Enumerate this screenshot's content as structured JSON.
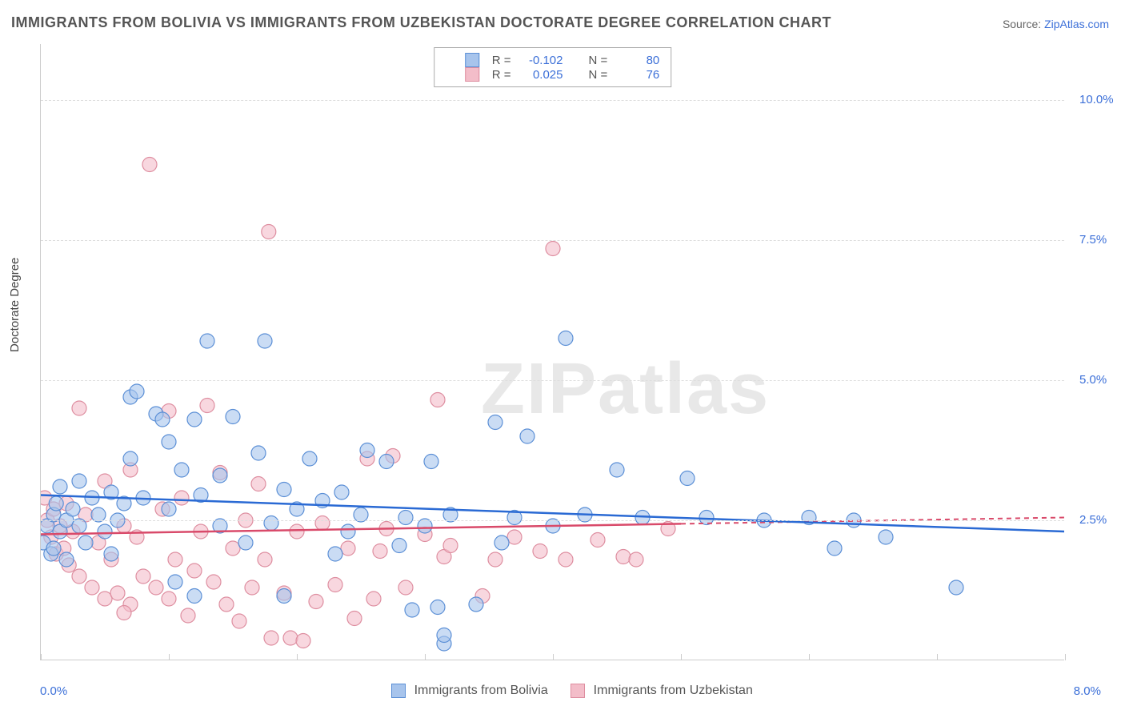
{
  "title": "IMMIGRANTS FROM BOLIVIA VS IMMIGRANTS FROM UZBEKISTAN DOCTORATE DEGREE CORRELATION CHART",
  "source_prefix": "Source: ",
  "source_name": "ZipAtlas.com",
  "watermark": "ZIPatlas",
  "y_axis_label": "Doctorate Degree",
  "chart": {
    "type": "scatter-with-trendlines",
    "background_color": "#ffffff",
    "grid_color": "#dddddd",
    "axis_color": "#cccccc",
    "tick_font_color": "#3b6fd8",
    "xlim": [
      0.0,
      8.0
    ],
    "ylim": [
      0.0,
      11.0
    ],
    "y_ticks": [
      2.5,
      5.0,
      7.5,
      10.0
    ],
    "y_tick_labels": [
      "2.5%",
      "5.0%",
      "7.5%",
      "10.0%"
    ],
    "x_ticks_count": 9,
    "x_min_label": "0.0%",
    "x_max_label": "8.0%",
    "marker_radius": 9,
    "marker_opacity": 0.6,
    "series": [
      {
        "name": "Immigrants from Bolivia",
        "legend_label": "Immigrants from Bolivia",
        "fill_color": "#a7c4ec",
        "stroke_color": "#5b8fd6",
        "trend_color": "#2a6ad4",
        "trend_dash_after_x": 8.0,
        "R": "-0.102",
        "N": "80",
        "trend": {
          "x0": 0.0,
          "y0": 2.95,
          "x1": 8.0,
          "y1": 2.3
        },
        "points": [
          [
            0.02,
            2.1
          ],
          [
            0.05,
            2.4
          ],
          [
            0.08,
            1.9
          ],
          [
            0.1,
            2.6
          ],
          [
            0.1,
            2.0
          ],
          [
            0.12,
            2.8
          ],
          [
            0.15,
            3.1
          ],
          [
            0.15,
            2.3
          ],
          [
            0.2,
            2.5
          ],
          [
            0.2,
            1.8
          ],
          [
            0.25,
            2.7
          ],
          [
            0.3,
            2.4
          ],
          [
            0.3,
            3.2
          ],
          [
            0.35,
            2.1
          ],
          [
            0.4,
            2.9
          ],
          [
            0.45,
            2.6
          ],
          [
            0.5,
            2.3
          ],
          [
            0.55,
            3.0
          ],
          [
            0.6,
            2.5
          ],
          [
            0.65,
            2.8
          ],
          [
            0.7,
            4.7
          ],
          [
            0.75,
            4.8
          ],
          [
            0.7,
            3.6
          ],
          [
            0.8,
            2.9
          ],
          [
            0.9,
            4.4
          ],
          [
            0.95,
            4.3
          ],
          [
            1.0,
            3.9
          ],
          [
            1.0,
            2.7
          ],
          [
            1.1,
            3.4
          ],
          [
            1.2,
            4.3
          ],
          [
            1.2,
            1.15
          ],
          [
            1.25,
            2.95
          ],
          [
            1.3,
            5.7
          ],
          [
            1.4,
            2.4
          ],
          [
            1.4,
            3.3
          ],
          [
            1.5,
            4.35
          ],
          [
            1.6,
            2.1
          ],
          [
            1.7,
            3.7
          ],
          [
            1.75,
            5.7
          ],
          [
            1.8,
            2.45
          ],
          [
            1.9,
            3.05
          ],
          [
            1.9,
            1.15
          ],
          [
            2.0,
            2.7
          ],
          [
            2.1,
            3.6
          ],
          [
            2.2,
            2.85
          ],
          [
            2.3,
            1.9
          ],
          [
            2.35,
            3.0
          ],
          [
            2.4,
            2.3
          ],
          [
            2.5,
            2.6
          ],
          [
            2.55,
            3.75
          ],
          [
            2.7,
            3.55
          ],
          [
            2.8,
            2.05
          ],
          [
            2.85,
            2.55
          ],
          [
            2.9,
            0.9
          ],
          [
            3.0,
            2.4
          ],
          [
            3.05,
            3.55
          ],
          [
            3.1,
            0.95
          ],
          [
            3.15,
            0.3
          ],
          [
            3.15,
            0.45
          ],
          [
            3.2,
            2.6
          ],
          [
            3.4,
            1.0
          ],
          [
            3.55,
            4.25
          ],
          [
            3.6,
            2.1
          ],
          [
            3.7,
            2.55
          ],
          [
            3.8,
            4.0
          ],
          [
            4.0,
            2.4
          ],
          [
            4.1,
            5.75
          ],
          [
            4.25,
            2.6
          ],
          [
            4.5,
            3.4
          ],
          [
            4.7,
            2.55
          ],
          [
            5.05,
            3.25
          ],
          [
            5.2,
            2.55
          ],
          [
            5.65,
            2.5
          ],
          [
            6.0,
            2.55
          ],
          [
            6.2,
            2.0
          ],
          [
            6.35,
            2.5
          ],
          [
            7.15,
            1.3
          ],
          [
            6.6,
            2.2
          ],
          [
            1.05,
            1.4
          ],
          [
            0.55,
            1.9
          ]
        ]
      },
      {
        "name": "Immigrants from Uzbekistan",
        "legend_label": "Immigrants from Uzbekistan",
        "fill_color": "#f3bdc9",
        "stroke_color": "#de8ea0",
        "trend_color": "#d94a6a",
        "trend_dash_after_x": 5.0,
        "R": "0.025",
        "N": "76",
        "trend": {
          "x0": 0.0,
          "y0": 2.25,
          "x1": 8.0,
          "y1": 2.55
        },
        "points": [
          [
            0.03,
            2.9
          ],
          [
            0.05,
            2.5
          ],
          [
            0.08,
            2.2
          ],
          [
            0.1,
            2.7
          ],
          [
            0.12,
            1.9
          ],
          [
            0.15,
            2.4
          ],
          [
            0.18,
            2.0
          ],
          [
            0.2,
            2.8
          ],
          [
            0.22,
            1.7
          ],
          [
            0.25,
            2.3
          ],
          [
            0.3,
            1.5
          ],
          [
            0.3,
            4.5
          ],
          [
            0.35,
            2.6
          ],
          [
            0.4,
            1.3
          ],
          [
            0.45,
            2.1
          ],
          [
            0.5,
            1.1
          ],
          [
            0.5,
            3.2
          ],
          [
            0.55,
            1.8
          ],
          [
            0.6,
            1.2
          ],
          [
            0.65,
            2.4
          ],
          [
            0.7,
            1.0
          ],
          [
            0.7,
            3.4
          ],
          [
            0.75,
            2.2
          ],
          [
            0.8,
            1.5
          ],
          [
            0.85,
            8.85
          ],
          [
            0.9,
            1.3
          ],
          [
            0.95,
            2.7
          ],
          [
            1.0,
            4.45
          ],
          [
            1.0,
            1.1
          ],
          [
            1.05,
            1.8
          ],
          [
            1.1,
            2.9
          ],
          [
            1.15,
            0.8
          ],
          [
            1.2,
            1.6
          ],
          [
            1.25,
            2.3
          ],
          [
            1.3,
            4.55
          ],
          [
            1.35,
            1.4
          ],
          [
            1.4,
            3.35
          ],
          [
            1.45,
            1.0
          ],
          [
            1.5,
            2.0
          ],
          [
            1.55,
            0.7
          ],
          [
            1.6,
            2.5
          ],
          [
            1.65,
            1.3
          ],
          [
            1.7,
            3.15
          ],
          [
            1.75,
            1.8
          ],
          [
            1.78,
            7.65
          ],
          [
            1.8,
            0.4
          ],
          [
            1.9,
            1.2
          ],
          [
            1.95,
            0.4
          ],
          [
            2.0,
            2.3
          ],
          [
            2.05,
            0.35
          ],
          [
            2.15,
            1.05
          ],
          [
            2.2,
            2.45
          ],
          [
            2.3,
            1.35
          ],
          [
            2.4,
            2.0
          ],
          [
            2.45,
            0.75
          ],
          [
            2.55,
            3.6
          ],
          [
            2.6,
            1.1
          ],
          [
            2.65,
            1.95
          ],
          [
            2.7,
            2.35
          ],
          [
            2.75,
            3.65
          ],
          [
            2.85,
            1.3
          ],
          [
            3.0,
            2.25
          ],
          [
            3.1,
            4.65
          ],
          [
            3.15,
            1.85
          ],
          [
            3.2,
            2.05
          ],
          [
            3.45,
            1.15
          ],
          [
            3.55,
            1.8
          ],
          [
            3.7,
            2.2
          ],
          [
            3.9,
            1.95
          ],
          [
            4.0,
            7.35
          ],
          [
            4.1,
            1.8
          ],
          [
            4.35,
            2.15
          ],
          [
            4.55,
            1.85
          ],
          [
            4.65,
            1.8
          ],
          [
            4.9,
            2.35
          ],
          [
            0.65,
            0.85
          ]
        ]
      }
    ]
  },
  "legend_top": {
    "r_label": "R =",
    "n_label": "N ="
  }
}
